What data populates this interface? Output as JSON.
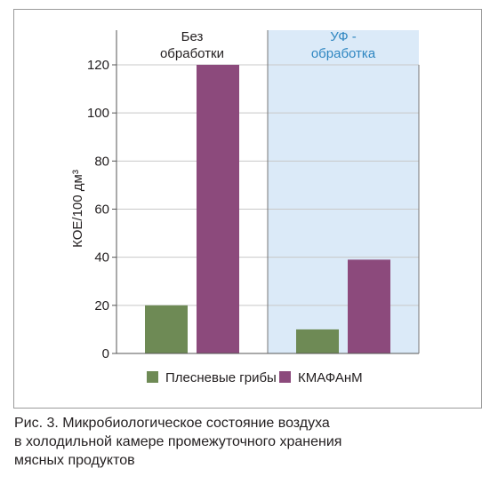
{
  "chart_data": {
    "type": "bar",
    "ylabel": "КОЕ/100 дм³",
    "ylim": [
      0,
      120
    ],
    "yticks": [
      0,
      20,
      40,
      60,
      80,
      100,
      120
    ],
    "grid": true,
    "groups": [
      {
        "label_lines": [
          "Без",
          "обработки"
        ],
        "highlight": false,
        "label_color": "#231f20"
      },
      {
        "label_lines": [
          "УФ -",
          "обработка"
        ],
        "highlight": true,
        "label_color": "#2e86c1"
      }
    ],
    "series": [
      {
        "name": "Плесневые грибы",
        "color": "#6e8a55",
        "values": [
          20,
          10
        ]
      },
      {
        "name": "КМАФАнМ",
        "color": "#8c4a7c",
        "values": [
          120,
          39
        ]
      }
    ],
    "highlight_color": "#dbeaf8",
    "legend_position": "bottom"
  },
  "caption": {
    "lines": [
      "Рис. 3. Микробиологическое состояние воздуха",
      "в холодильной камере промежуточного хранения",
      "мясных продуктов"
    ]
  }
}
